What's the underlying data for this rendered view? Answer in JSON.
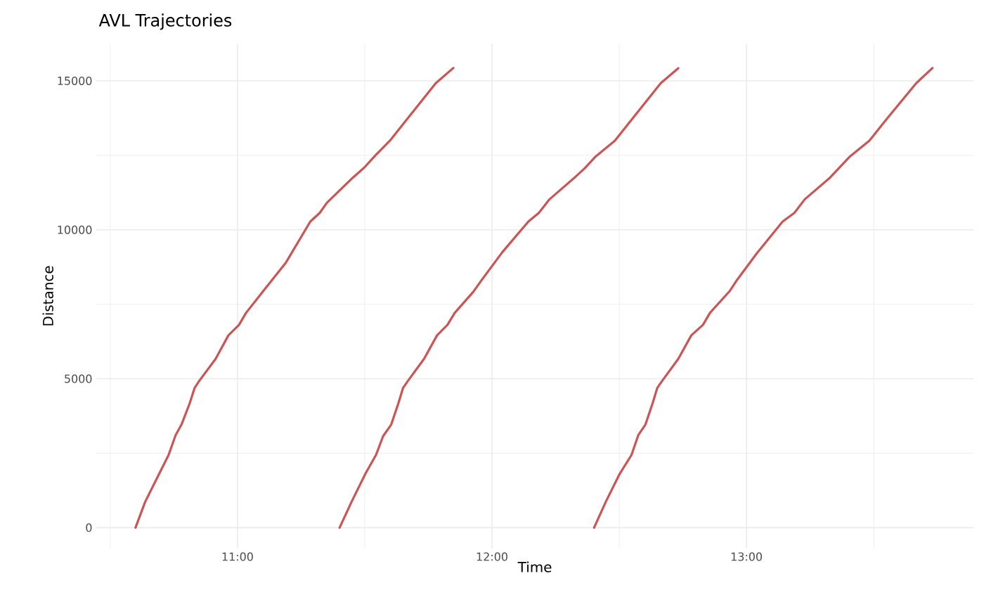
{
  "chart_data": {
    "type": "line",
    "title": "AVL Trajectories",
    "xlabel": "Time",
    "ylabel": "Distance",
    "xlim": [
      10.445,
      13.892
    ],
    "ylim": [
      -700,
      16250
    ],
    "xticks": [
      {
        "value": 10.5,
        "label": null
      },
      {
        "value": 11,
        "label": "11:00"
      },
      {
        "value": 11.5,
        "label": null
      },
      {
        "value": 12,
        "label": "12:00"
      },
      {
        "value": 12.5,
        "label": null
      },
      {
        "value": 13,
        "label": "13:00"
      },
      {
        "value": 13.5,
        "label": null
      }
    ],
    "yticks": [
      0,
      {
        "value": 2500,
        "label": null
      },
      5000,
      {
        "value": 7500,
        "label": null
      },
      10000,
      {
        "value": 12500,
        "label": null
      },
      15000
    ],
    "grid": true,
    "line_style": "solid",
    "marker": "none",
    "series": [
      {
        "color": "#cd5454",
        "x": [
          10.599,
          10.637,
          10.683,
          10.729,
          10.757,
          10.78,
          10.812,
          10.831,
          10.849,
          10.914,
          10.964,
          11.006,
          11.033,
          11.098,
          11.19,
          11.286,
          11.323,
          11.351,
          11.448,
          11.498,
          11.54,
          11.599,
          11.65,
          11.779,
          11.848
        ],
        "values": [
          0,
          867,
          1654,
          2440,
          3111,
          3465,
          4174,
          4684,
          4921,
          5669,
          6456,
          6810,
          7205,
          7913,
          8898,
          10276,
          10566,
          10906,
          11710,
          12088,
          12480,
          12992,
          13543,
          14922,
          15433
        ]
      },
      {
        "color": "#cd5454",
        "x": [
          11.401,
          11.448,
          11.503,
          11.544,
          11.572,
          11.604,
          11.632,
          11.65,
          11.669,
          11.733,
          11.784,
          11.825,
          11.853,
          11.926,
          11.959,
          12.041,
          12.143,
          12.184,
          12.226,
          12.322,
          12.364,
          12.405,
          12.483,
          12.534,
          12.663,
          12.732
        ],
        "values": [
          0,
          867,
          1819,
          2440,
          3071,
          3465,
          4174,
          4684,
          4921,
          5669,
          6456,
          6810,
          7205,
          7913,
          8308,
          9253,
          10276,
          10566,
          11024,
          11733,
          12064,
          12442,
          12992,
          13543,
          14922,
          15425
        ]
      },
      {
        "color": "#cd5454",
        "x": [
          12.401,
          12.447,
          12.502,
          12.548,
          12.575,
          12.603,
          12.631,
          12.649,
          12.668,
          12.732,
          12.783,
          12.829,
          12.856,
          12.935,
          12.962,
          13.041,
          13.142,
          13.188,
          13.229,
          13.326,
          13.404,
          13.483,
          13.538,
          13.667,
          13.731
        ],
        "values": [
          0,
          867,
          1812,
          2440,
          3111,
          3465,
          4174,
          4684,
          4921,
          5669,
          6456,
          6810,
          7205,
          7953,
          8307,
          9213,
          10276,
          10566,
          11024,
          11733,
          12442,
          12992,
          13583,
          14922,
          15433
        ]
      }
    ]
  }
}
